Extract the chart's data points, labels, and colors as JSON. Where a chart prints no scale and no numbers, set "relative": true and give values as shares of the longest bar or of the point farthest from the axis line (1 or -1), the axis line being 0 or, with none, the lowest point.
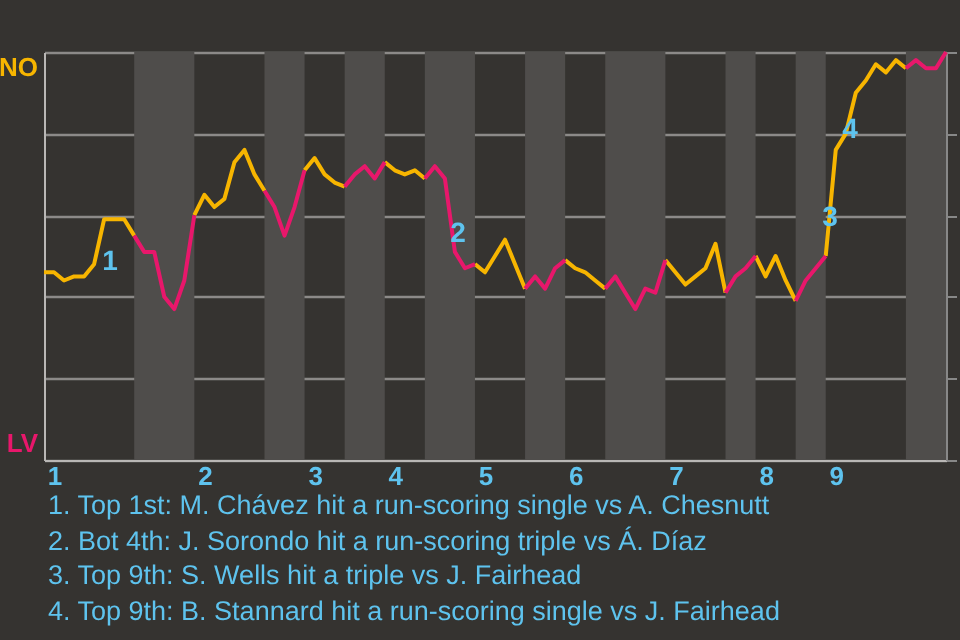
{
  "chart_data": {
    "type": "line",
    "relative": true,
    "categories": [
      null,
      "1",
      null,
      null,
      null,
      null,
      null,
      null,
      null,
      null,
      null,
      null,
      null,
      null,
      null,
      null,
      "2",
      null,
      null,
      null,
      null,
      null,
      null,
      null,
      null,
      null,
      null,
      "3",
      null,
      null,
      null,
      null,
      null,
      null,
      null,
      "4",
      null,
      null,
      null,
      null,
      null,
      null,
      null,
      null,
      "5",
      null,
      null,
      null,
      null,
      null,
      null,
      null,
      null,
      "6",
      null,
      null,
      null,
      null,
      null,
      null,
      null,
      null,
      null,
      "7",
      null,
      null,
      null,
      null,
      null,
      null,
      null,
      null,
      "8",
      null,
      null,
      null,
      null,
      null,
      null,
      "9",
      null,
      null,
      null,
      null,
      null,
      null,
      null,
      null,
      null,
      null,
      null
    ],
    "grid": "y",
    "legend": "left",
    "series": [
      {
        "name": "NO",
        "color": "#f7b500",
        "values": [
          0.46,
          0.46,
          0.44,
          0.45,
          0.45,
          0.48,
          0.59,
          0.59,
          0.59,
          0.55,
          null,
          null,
          null,
          null,
          null,
          0.6,
          0.65,
          0.62,
          0.64,
          0.73,
          0.76,
          0.7,
          0.66,
          null,
          null,
          null,
          0.71,
          0.74,
          0.7,
          0.68,
          0.67,
          null,
          null,
          null,
          0.73,
          0.71,
          0.7,
          0.71,
          0.69,
          null,
          null,
          null,
          null,
          0.48,
          0.46,
          0.5,
          0.54,
          0.48,
          0.42,
          null,
          null,
          null,
          0.49,
          0.47,
          0.46,
          0.44,
          0.42,
          null,
          null,
          null,
          null,
          null,
          0.49,
          0.46,
          0.43,
          0.45,
          0.47,
          0.53,
          0.41,
          null,
          null,
          0.5,
          0.45,
          0.5,
          0.44,
          0.39,
          null,
          null,
          0.5,
          0.76,
          0.8,
          0.9,
          0.93,
          0.97,
          0.95,
          0.98,
          0.96,
          null,
          null,
          null,
          null
        ]
      },
      {
        "name": "LV",
        "color": "#e8176b",
        "values": [
          null,
          null,
          null,
          null,
          null,
          null,
          null,
          null,
          null,
          0.55,
          0.51,
          0.51,
          0.4,
          0.37,
          0.44,
          0.6,
          null,
          null,
          null,
          null,
          null,
          null,
          0.66,
          0.62,
          0.55,
          0.62,
          0.71,
          null,
          null,
          null,
          0.67,
          0.7,
          0.72,
          0.69,
          0.73,
          null,
          null,
          null,
          0.69,
          0.72,
          0.69,
          0.51,
          0.47,
          0.48,
          null,
          null,
          null,
          null,
          0.42,
          0.45,
          0.42,
          0.47,
          0.49,
          null,
          null,
          null,
          0.42,
          0.45,
          0.41,
          0.37,
          0.42,
          0.41,
          0.49,
          null,
          null,
          null,
          null,
          null,
          0.41,
          0.45,
          0.47,
          0.5,
          null,
          null,
          null,
          0.39,
          0.44,
          0.47,
          0.5,
          null,
          null,
          null,
          null,
          null,
          null,
          null,
          0.96,
          0.98,
          0.96,
          0.96,
          1.0
        ]
      }
    ],
    "annotations": [
      "1",
      "2",
      "3",
      "4",
      "1. Top 1st: M. Chávez hit a run-scoring single vs A. Chesnutt",
      "2. Bot 4th: J. Sorondo hit a run-scoring triple vs Á. Díaz",
      "3. Top 9th: S. Wells hit a triple vs J. Fairhead",
      "4. Top 9th: B. Stannard hit a run-scoring single vs J. Fairhead"
    ]
  }
}
